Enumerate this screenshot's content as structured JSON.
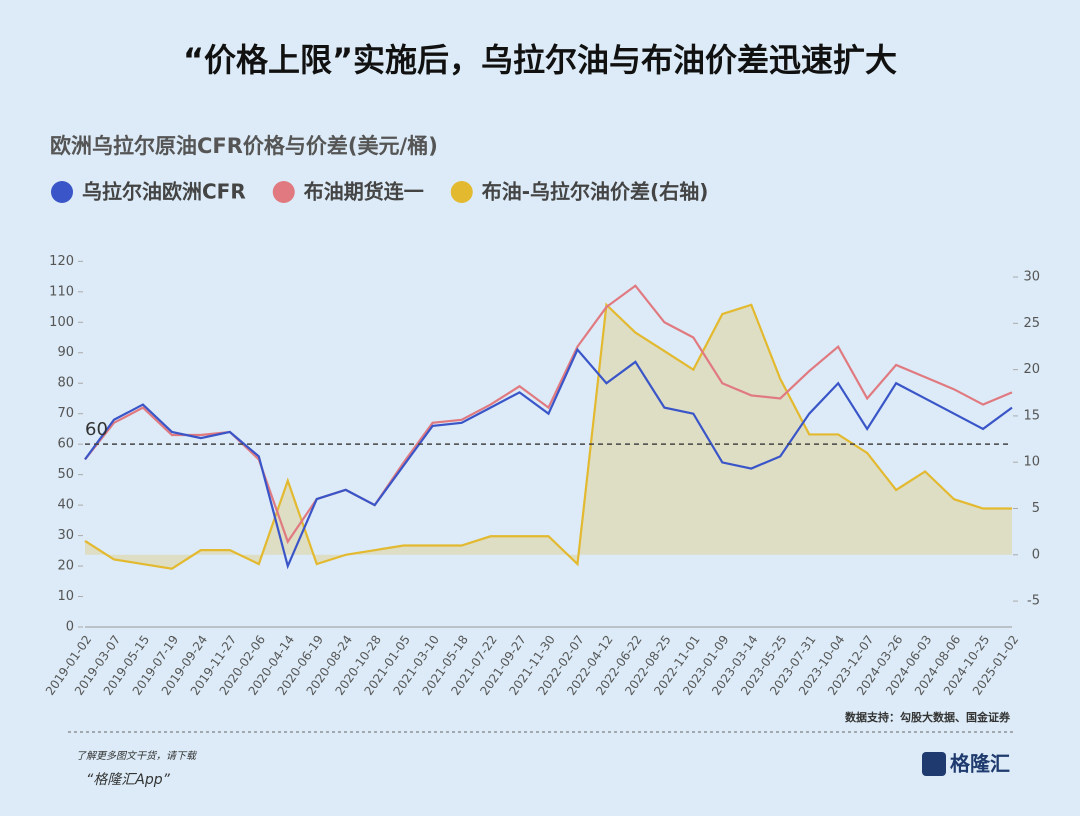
{
  "page_title": "“价格上限”实施后，乌拉尔油与布油价差迅速扩大",
  "chart_data": {
    "type": "line",
    "title": "欧洲乌拉尔原油CFR价格与价差(美元/桶)",
    "categories": [
      "2019-01-02",
      "2019-03-07",
      "2019-05-15",
      "2019-07-19",
      "2019-09-24",
      "2019-11-27",
      "2020-02-06",
      "2020-04-14",
      "2020-06-19",
      "2020-08-24",
      "2020-10-28",
      "2021-01-05",
      "2021-03-10",
      "2021-05-18",
      "2021-07-22",
      "2021-09-27",
      "2021-11-30",
      "2022-02-07",
      "2022-04-12",
      "2022-06-22",
      "2022-08-25",
      "2022-11-01",
      "2023-01-09",
      "2023-03-14",
      "2023-05-25",
      "2023-07-31",
      "2023-10-04",
      "2023-12-07",
      "2024-03-26",
      "2024-06-03",
      "2024-08-06",
      "2024-10-25",
      "2025-01-02"
    ],
    "series": [
      {
        "name": "乌拉尔油欧洲CFR",
        "color": "#3a55c8",
        "values": [
          55,
          68,
          73,
          64,
          62,
          64,
          56,
          20,
          42,
          45,
          40,
          53,
          66,
          67,
          72,
          77,
          70,
          91,
          80,
          87,
          72,
          70,
          54,
          52,
          56,
          70,
          80,
          65,
          80,
          75,
          70,
          65,
          72
        ]
      },
      {
        "name": "布油期货连一",
        "color": "#e07a80",
        "values": [
          55,
          67,
          72,
          63,
          63,
          64,
          55,
          28,
          42,
          45,
          40,
          54,
          67,
          68,
          73,
          79,
          72,
          92,
          105,
          112,
          100,
          95,
          80,
          76,
          75,
          84,
          92,
          75,
          86,
          82,
          78,
          73,
          77
        ]
      },
      {
        "name": "布油-乌拉尔油价差(右轴)",
        "color": "#e3b930",
        "axis": "y2",
        "values": [
          1.5,
          -0.5,
          -1,
          -1.5,
          0.5,
          0.5,
          -1,
          8,
          -1,
          0,
          0.5,
          1,
          1,
          1,
          2,
          2,
          2,
          -1,
          27,
          24,
          22,
          20,
          26,
          27,
          19,
          13,
          13,
          11,
          7,
          9,
          6,
          5,
          5
        ]
      }
    ],
    "ylim": [
      0,
      127
    ],
    "yticks": [
      0,
      10,
      20,
      30,
      40,
      50,
      60,
      70,
      80,
      90,
      100,
      110,
      120
    ],
    "y2lim": [
      -7.8,
      34
    ],
    "y2ticks": [
      -5,
      0,
      5,
      10,
      15,
      20,
      25,
      30
    ],
    "hline": 60,
    "source": "数据支持：勾股大数据、国金证券"
  },
  "footer": {
    "line1": "了解更多图文干货，请下载",
    "line2": "“格隆汇App”",
    "logo": "格隆汇"
  }
}
